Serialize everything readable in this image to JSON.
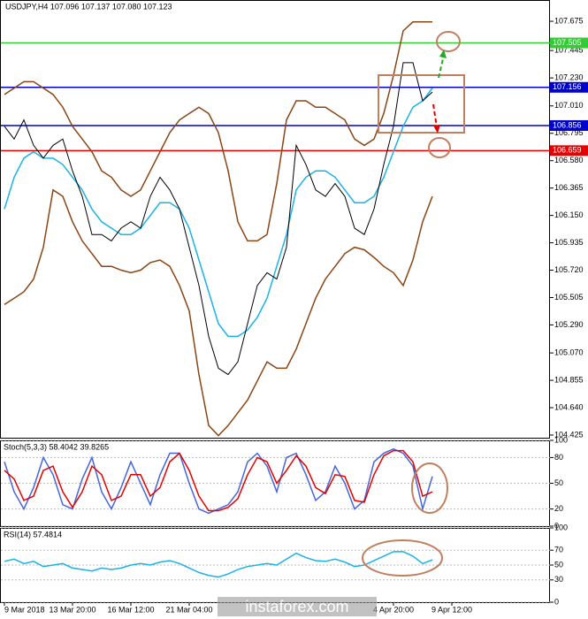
{
  "chart_data": [
    {
      "type": "line",
      "title": "USDJPY,H4  107.096 107.137 107.080 107.123",
      "watermark": "instaforex.com",
      "categories": [
        "9 Mar 2018",
        null,
        null,
        null,
        null,
        null,
        null,
        "13 Mar 20:00",
        null,
        null,
        null,
        null,
        null,
        "16 Mar 12:00",
        null,
        null,
        null,
        null,
        null,
        "21 Mar 04:00",
        null,
        null,
        null,
        null,
        null,
        null,
        null,
        null,
        null,
        null,
        null,
        null,
        null,
        null,
        null,
        null,
        null,
        null,
        null,
        null,
        "4 Apr 20:00",
        null,
        null,
        null,
        null,
        null,
        "9 Apr 12:00",
        null,
        null,
        null,
        null,
        null,
        null,
        null,
        null,
        null
      ],
      "ylim": [
        104.404,
        107.842
      ],
      "yticks": [
        104.425,
        {
          "value": 104.64,
          "label": "104.640"
        },
        104.855,
        {
          "value": 105.07,
          "label": "105.070"
        },
        {
          "value": 105.29,
          "label": "105.290"
        },
        105.505,
        {
          "value": 105.72,
          "label": "105.720"
        },
        105.935,
        {
          "value": 106.15,
          "label": "106.150"
        },
        106.365,
        {
          "value": 106.58,
          "label": "106.580"
        },
        106.795,
        {
          "value": 107.01,
          "label": "107.010"
        },
        {
          "value": 107.23,
          "label": "107.230"
        },
        107.445,
        107.675
      ],
      "levels": [
        {
          "value": 107.505,
          "color": "#33cc33"
        },
        {
          "value": 107.156,
          "color": "#0000cc"
        },
        {
          "value": 106.856,
          "color": "#0000cc"
        },
        {
          "value": 106.659,
          "color": "#e60000"
        }
      ],
      "series": [
        {
          "color": "#8b4513",
          "values": [
            107.1,
            107.15,
            107.2,
            107.2,
            107.15,
            107.1,
            107.0,
            106.85,
            106.75,
            106.65,
            106.5,
            106.45,
            106.35,
            106.3,
            106.35,
            106.5,
            106.65,
            106.8,
            106.9,
            106.95,
            107.0,
            106.95,
            106.8,
            106.5,
            106.1,
            105.95,
            105.95,
            106.0,
            106.4,
            106.9,
            107.05,
            107.05,
            107.0,
            107.0,
            106.95,
            106.9,
            106.75,
            106.7,
            106.75,
            106.95,
            107.25,
            107.6,
            107.67,
            107.67,
            107.67,
            null,
            null,
            null,
            null,
            null,
            null,
            null,
            null,
            null,
            null,
            null
          ]
        },
        {
          "color": "#8b4513",
          "values": [
            105.45,
            105.5,
            105.55,
            105.65,
            105.9,
            106.35,
            106.3,
            106.1,
            105.95,
            105.85,
            105.75,
            105.75,
            105.72,
            105.7,
            105.72,
            105.78,
            105.8,
            105.75,
            105.6,
            105.4,
            104.9,
            104.5,
            104.42,
            104.5,
            104.6,
            104.7,
            104.85,
            105.0,
            104.95,
            104.95,
            105.1,
            105.3,
            105.5,
            105.65,
            105.75,
            105.85,
            105.9,
            105.88,
            105.82,
            105.75,
            105.7,
            105.6,
            105.8,
            106.1,
            106.3,
            null,
            null,
            null,
            null,
            null,
            null,
            null,
            null,
            null,
            null,
            null
          ]
        },
        {
          "color": "#1ab3e6",
          "values": [
            106.2,
            106.45,
            106.6,
            106.65,
            106.6,
            106.6,
            106.55,
            106.45,
            106.35,
            106.2,
            106.1,
            106.05,
            106.0,
            106.0,
            106.05,
            106.15,
            106.25,
            106.25,
            106.2,
            106.05,
            105.8,
            105.55,
            105.3,
            105.2,
            105.2,
            105.25,
            105.35,
            105.5,
            105.75,
            106.0,
            106.35,
            106.45,
            106.5,
            106.5,
            106.45,
            106.35,
            106.25,
            106.25,
            106.3,
            106.45,
            106.65,
            106.85,
            107.0,
            107.05,
            107.15,
            null,
            null,
            null,
            null,
            null,
            null,
            null,
            null,
            null,
            null,
            null
          ]
        },
        {
          "color": "#000000",
          "values": [
            106.85,
            106.75,
            106.9,
            106.7,
            106.6,
            106.7,
            106.75,
            106.5,
            106.3,
            106.0,
            106.0,
            105.95,
            106.05,
            106.1,
            106.05,
            106.3,
            106.45,
            106.35,
            106.2,
            105.9,
            105.6,
            105.2,
            104.95,
            104.9,
            105.0,
            105.3,
            105.6,
            105.7,
            105.65,
            105.9,
            106.7,
            106.55,
            106.35,
            106.3,
            106.4,
            106.3,
            106.05,
            106.0,
            106.2,
            106.55,
            106.85,
            107.35,
            107.35,
            107.05,
            107.12,
            null,
            null,
            null,
            null,
            null,
            null,
            null,
            null,
            null,
            null,
            null
          ]
        }
      ]
    },
    {
      "type": "line",
      "title": "Stoch(5,3,3) 58.4042 39.8265",
      "ylim": [
        0,
        100
      ],
      "yticks": [
        0,
        20,
        50,
        80,
        100
      ],
      "series": [
        {
          "color": "#4466dd",
          "values": [
            75,
            40,
            20,
            45,
            80,
            60,
            25,
            20,
            55,
            80,
            40,
            20,
            45,
            75,
            50,
            25,
            60,
            85,
            85,
            50,
            20,
            15,
            20,
            25,
            40,
            75,
            85,
            70,
            40,
            80,
            85,
            60,
            30,
            40,
            70,
            50,
            20,
            30,
            75,
            85,
            90,
            85,
            70,
            20,
            58,
            null,
            null,
            null,
            null,
            null,
            null,
            null,
            null,
            null,
            null,
            null
          ]
        },
        {
          "color": "#e60000",
          "values": [
            65,
            55,
            30,
            35,
            65,
            70,
            40,
            22,
            40,
            70,
            60,
            30,
            35,
            60,
            60,
            35,
            45,
            75,
            85,
            65,
            35,
            18,
            18,
            22,
            32,
            60,
            80,
            75,
            50,
            65,
            82,
            70,
            45,
            38,
            60,
            58,
            30,
            28,
            60,
            82,
            88,
            88,
            75,
            35,
            40,
            null,
            null,
            null,
            null,
            null,
            null,
            null,
            null,
            null,
            null,
            null
          ]
        }
      ]
    },
    {
      "type": "line",
      "title": "RSI(14) 57.4814",
      "ylim": [
        0,
        100
      ],
      "yticks": [
        0,
        30,
        50,
        70,
        100
      ],
      "series": [
        {
          "color": "#1ab3e6",
          "values": [
            55,
            58,
            52,
            55,
            48,
            50,
            52,
            46,
            44,
            42,
            46,
            44,
            46,
            50,
            52,
            50,
            54,
            56,
            52,
            46,
            40,
            36,
            34,
            38,
            44,
            48,
            50,
            52,
            50,
            58,
            66,
            60,
            56,
            55,
            58,
            54,
            48,
            50,
            56,
            62,
            68,
            68,
            62,
            52,
            57,
            null,
            null,
            null,
            null,
            null,
            null,
            null,
            null,
            null,
            null,
            null
          ]
        }
      ]
    }
  ]
}
